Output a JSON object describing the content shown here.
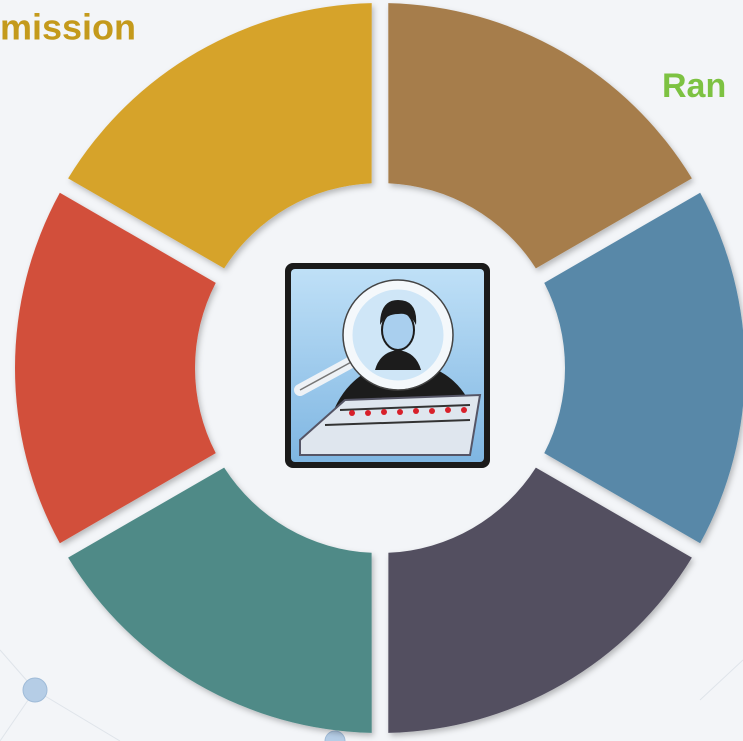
{
  "labels": {
    "left": "mission",
    "right": "Ran"
  }
}
